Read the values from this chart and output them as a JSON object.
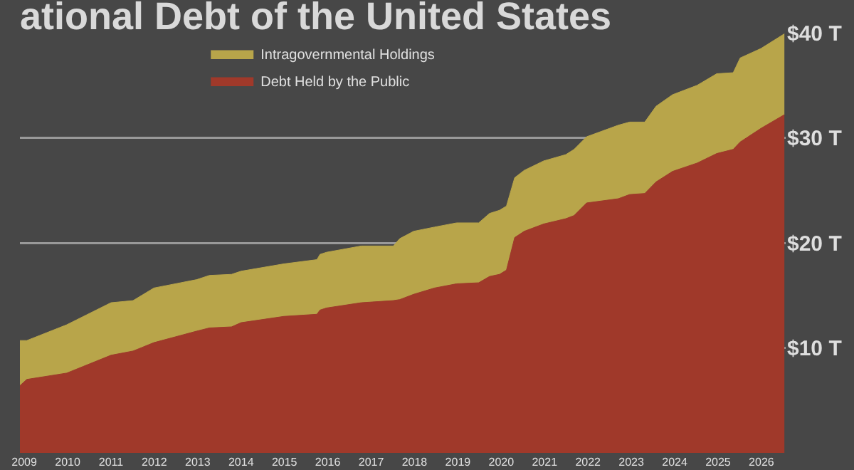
{
  "chart_data": {
    "type": "area",
    "title": "ational Debt of the United States",
    "stacked": true,
    "grid": "y",
    "legend": "top",
    "x": [
      2008.9,
      2009.06,
      2009.98,
      2011.0,
      2011.51,
      2011.99,
      2012.98,
      2013.27,
      2013.78,
      2014.0,
      2014.99,
      2015.75,
      2015.82,
      2015.97,
      2016.77,
      2017.51,
      2017.66,
      2017.98,
      2018.46,
      2018.97,
      2019.48,
      2019.73,
      2019.96,
      2020.12,
      2020.31,
      2020.53,
      2020.98,
      2021.49,
      2021.68,
      2021.97,
      2022.7,
      2022.96,
      2023.31,
      2023.57,
      2023.95,
      2024.52,
      2024.97,
      2025.35,
      2025.51,
      2025.99,
      2026.53
    ],
    "series": [
      {
        "name": "Debt Held by the Public",
        "color": "#a0392a",
        "values": [
          6.4,
          7.0,
          7.6,
          9.3,
          9.7,
          10.5,
          11.6,
          11.9,
          12.0,
          12.4,
          13.0,
          13.2,
          13.6,
          13.8,
          14.3,
          14.5,
          14.6,
          15.1,
          15.7,
          16.1,
          16.2,
          16.8,
          17.0,
          17.4,
          20.5,
          21.1,
          21.8,
          22.3,
          22.6,
          23.8,
          24.2,
          24.6,
          24.7,
          25.8,
          26.8,
          27.6,
          28.5,
          28.9,
          29.6,
          30.9,
          32.2
        ]
      },
      {
        "name": "Intragovernmental Holdings",
        "color": "#b8a54a",
        "values": [
          4.3,
          3.7,
          4.6,
          5.0,
          4.8,
          5.2,
          4.9,
          5.0,
          5.0,
          4.9,
          5.0,
          5.2,
          5.3,
          5.3,
          5.4,
          5.2,
          5.8,
          6.0,
          5.8,
          5.8,
          5.7,
          6.0,
          6.1,
          6.1,
          5.7,
          5.8,
          6.0,
          6.1,
          6.3,
          6.3,
          7.0,
          6.9,
          6.8,
          7.2,
          7.3,
          7.4,
          7.6,
          7.3,
          8.0,
          7.6,
          7.7
        ]
      }
    ],
    "xlim": [
      2008.9,
      2026.56
    ],
    "xticks": [
      2009,
      2010,
      2011,
      2012,
      2013,
      2014,
      2015,
      2016,
      2017,
      2018,
      2019,
      2020,
      2021,
      2022,
      2023,
      2024,
      2025,
      2026
    ],
    "ylim": [
      0,
      40
    ],
    "yticks": [
      {
        "value": 10,
        "label": "$10 T"
      },
      {
        "value": 20,
        "label": "$20 T"
      },
      {
        "value": 30,
        "label": "$30 T"
      },
      {
        "value": 40,
        "label": "$40 T"
      }
    ]
  }
}
